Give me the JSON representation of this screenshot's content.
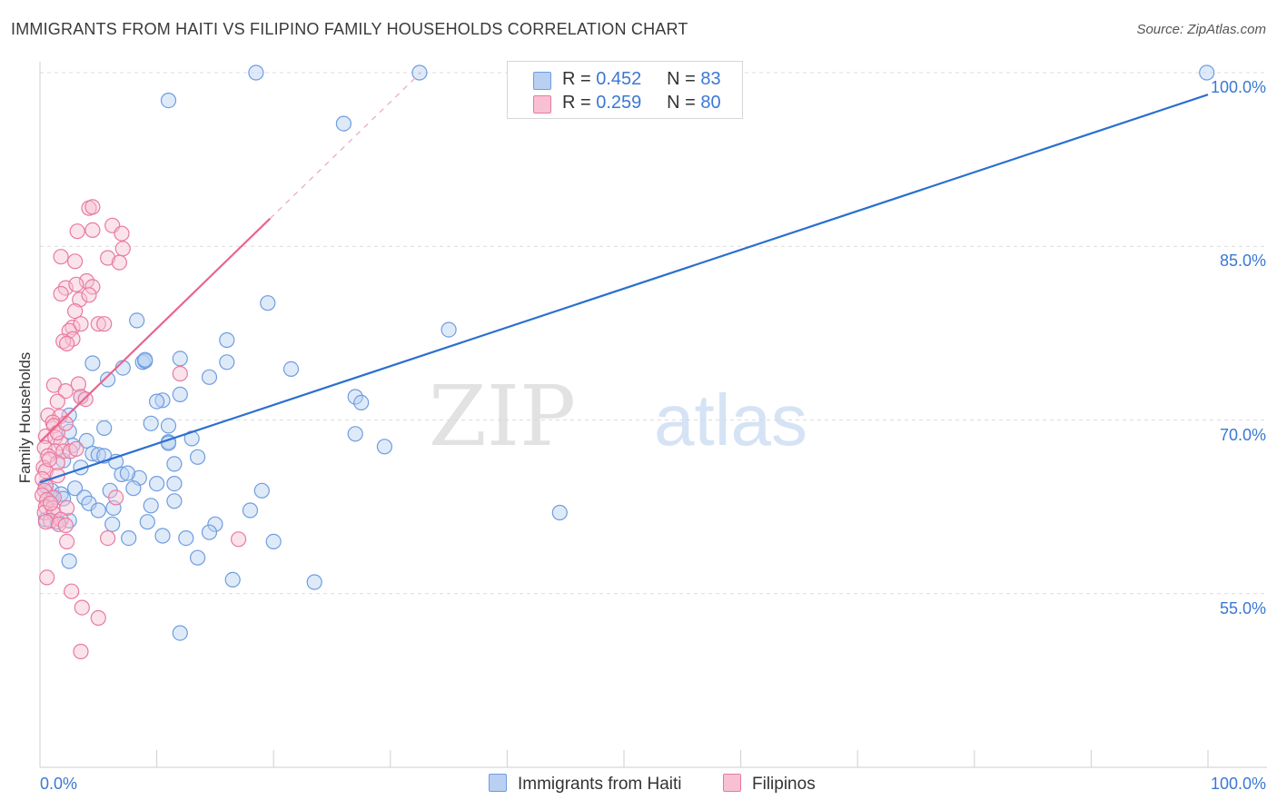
{
  "title": "IMMIGRANTS FROM HAITI VS FILIPINO FAMILY HOUSEHOLDS CORRELATION CHART",
  "source": "Source: ZipAtlas.com",
  "watermark": {
    "zip": "ZIP",
    "atlas": "atlas"
  },
  "legend": {
    "r_label": "R =",
    "n_label": "N =",
    "series": [
      {
        "name": "Immigrants from Haiti",
        "r": "0.452",
        "n": "83",
        "color": "#6d9de0",
        "fill": "#b9d0f2"
      },
      {
        "name": "Filipinos",
        "r": "0.259",
        "n": "80",
        "color": "#e87aa0",
        "fill": "#f7c1d3"
      }
    ]
  },
  "chart_data": {
    "type": "scatter",
    "title": "IMMIGRANTS FROM HAITI VS FILIPINO FAMILY HOUSEHOLDS CORRELATION CHART",
    "xlabel": "",
    "ylabel": "Family Households",
    "xlim": [
      0,
      100
    ],
    "ylim": [
      40,
      100
    ],
    "x_tick_labels": [
      "0.0%",
      "100.0%"
    ],
    "y_ticks": [
      {
        "value": 55,
        "label": "55.0%"
      },
      {
        "value": 70,
        "label": "70.0%"
      },
      {
        "value": 85,
        "label": "85.0%"
      },
      {
        "value": 100,
        "label": "100.0%"
      }
    ],
    "grid": "horizontal dashed",
    "series": [
      {
        "name": "Immigrants from Haiti",
        "color": "#6d9de0",
        "fill": "#b9d0f2",
        "trend": {
          "x": [
            0,
            100
          ],
          "y": [
            64.6,
            98.1
          ],
          "style": "solid",
          "color": "#2b6fcf"
        },
        "points": [
          [
            18.5,
            100
          ],
          [
            32.5,
            100
          ],
          [
            99.9,
            100
          ],
          [
            11,
            97.6
          ],
          [
            26,
            95.6
          ],
          [
            8.3,
            78.6
          ],
          [
            19.5,
            80.1
          ],
          [
            35,
            77.8
          ],
          [
            16,
            76.9
          ],
          [
            4.5,
            74.9
          ],
          [
            7.1,
            74.5
          ],
          [
            8.8,
            75
          ],
          [
            9,
            75.1
          ],
          [
            16,
            75
          ],
          [
            12,
            75.3
          ],
          [
            21.5,
            74.4
          ],
          [
            14.5,
            73.7
          ],
          [
            5.8,
            73.5
          ],
          [
            27,
            72
          ],
          [
            27.5,
            71.5
          ],
          [
            10.5,
            71.7
          ],
          [
            12,
            72.2
          ],
          [
            10,
            71.6
          ],
          [
            3.5,
            72
          ],
          [
            2.5,
            70.4
          ],
          [
            9.5,
            69.7
          ],
          [
            5.5,
            69.3
          ],
          [
            2.5,
            69
          ],
          [
            11,
            69.5
          ],
          [
            27,
            68.8
          ],
          [
            29.5,
            67.7
          ],
          [
            11,
            68.1
          ],
          [
            13,
            68.4
          ],
          [
            4,
            68.2
          ],
          [
            2.8,
            67.8
          ],
          [
            4.5,
            67.1
          ],
          [
            5,
            67
          ],
          [
            13.5,
            66.8
          ],
          [
            2,
            66.5
          ],
          [
            3.5,
            65.9
          ],
          [
            11.5,
            66.2
          ],
          [
            6.5,
            66.4
          ],
          [
            7,
            65.3
          ],
          [
            8.5,
            65
          ],
          [
            7.5,
            65.4
          ],
          [
            10,
            64.5
          ],
          [
            11.5,
            64.5
          ],
          [
            0.5,
            64.3
          ],
          [
            1,
            63.9
          ],
          [
            1.8,
            63.6
          ],
          [
            3,
            64.1
          ],
          [
            6,
            63.9
          ],
          [
            8,
            64.1
          ],
          [
            19,
            63.9
          ],
          [
            1,
            63.3
          ],
          [
            2,
            63.2
          ],
          [
            3.8,
            63.3
          ],
          [
            4.2,
            62.8
          ],
          [
            11.5,
            63
          ],
          [
            9.5,
            62.6
          ],
          [
            5,
            62.2
          ],
          [
            6.3,
            62.4
          ],
          [
            18,
            62.2
          ],
          [
            44.5,
            62
          ],
          [
            0.5,
            61.4
          ],
          [
            1.5,
            61.2
          ],
          [
            6.2,
            61
          ],
          [
            9.2,
            61.2
          ],
          [
            15,
            61
          ],
          [
            7.6,
            59.8
          ],
          [
            10.5,
            60
          ],
          [
            12.5,
            59.8
          ],
          [
            14.5,
            60.3
          ],
          [
            20,
            59.5
          ],
          [
            2.5,
            57.8
          ],
          [
            13.5,
            58.1
          ],
          [
            16.5,
            56.2
          ],
          [
            23.5,
            56
          ],
          [
            12,
            51.6
          ],
          [
            9,
            75.2
          ],
          [
            11,
            68
          ],
          [
            5.5,
            66.9
          ],
          [
            2.5,
            61.3
          ]
        ]
      },
      {
        "name": "Filipinos",
        "color": "#e87aa0",
        "fill": "#f7c1d3",
        "trend": {
          "x": [
            0,
            19.7
          ],
          "y": [
            68.1,
            87.4
          ],
          "dashed_to": [
            32.6,
            100
          ],
          "style": "solid",
          "color": "#e8648f"
        },
        "points": [
          [
            4.2,
            88.3
          ],
          [
            4.5,
            88.4
          ],
          [
            6.2,
            86.8
          ],
          [
            7,
            86.1
          ],
          [
            3.2,
            86.3
          ],
          [
            4.5,
            86.4
          ],
          [
            7.1,
            84.8
          ],
          [
            1.8,
            84.1
          ],
          [
            5.8,
            84
          ],
          [
            6.8,
            83.6
          ],
          [
            3,
            83.7
          ],
          [
            4,
            82
          ],
          [
            2.2,
            81.4
          ],
          [
            3.1,
            81.7
          ],
          [
            4.5,
            81.5
          ],
          [
            3.4,
            80.4
          ],
          [
            4.2,
            80.8
          ],
          [
            1.8,
            80.9
          ],
          [
            3,
            79.4
          ],
          [
            2.8,
            78
          ],
          [
            3.5,
            78.3
          ],
          [
            5,
            78.3
          ],
          [
            5.5,
            78.3
          ],
          [
            2.5,
            77.7
          ],
          [
            2.8,
            77
          ],
          [
            2,
            76.8
          ],
          [
            2.3,
            76.6
          ],
          [
            12,
            74
          ],
          [
            1.2,
            73
          ],
          [
            3.3,
            73.1
          ],
          [
            2.2,
            72.5
          ],
          [
            3.5,
            72
          ],
          [
            1.5,
            71.6
          ],
          [
            0.7,
            70.4
          ],
          [
            1.7,
            70.3
          ],
          [
            1.1,
            69.8
          ],
          [
            1.2,
            69.5
          ],
          [
            0.5,
            68.6
          ],
          [
            1.3,
            68.5
          ],
          [
            1.8,
            68
          ],
          [
            0.4,
            67.6
          ],
          [
            1.3,
            67.3
          ],
          [
            2,
            67.3
          ],
          [
            2.6,
            67.3
          ],
          [
            0.7,
            66.9
          ],
          [
            1.5,
            66.3
          ],
          [
            0.3,
            65.9
          ],
          [
            0.5,
            65.6
          ],
          [
            1.5,
            65.2
          ],
          [
            0.2,
            64.9
          ],
          [
            0.5,
            64.3
          ],
          [
            0.4,
            63.9
          ],
          [
            0.2,
            63.5
          ],
          [
            1.2,
            63.3
          ],
          [
            0.6,
            63.1
          ],
          [
            6.5,
            63.3
          ],
          [
            0.5,
            62.5
          ],
          [
            1.1,
            62.4
          ],
          [
            2.3,
            62.4
          ],
          [
            0.4,
            62
          ],
          [
            1.2,
            61.9
          ],
          [
            0.9,
            61.3
          ],
          [
            1.8,
            61.4
          ],
          [
            0.5,
            61.2
          ],
          [
            1.6,
            61
          ],
          [
            2.2,
            60.9
          ],
          [
            5.8,
            59.8
          ],
          [
            17,
            59.7
          ],
          [
            2.3,
            59.5
          ],
          [
            0.6,
            56.4
          ],
          [
            2.7,
            55.2
          ],
          [
            3.6,
            53.8
          ],
          [
            5,
            52.9
          ],
          [
            3.5,
            50
          ],
          [
            3.1,
            67.5
          ],
          [
            0.8,
            66.6
          ],
          [
            1.5,
            68.9
          ],
          [
            2.2,
            69.7
          ],
          [
            0.9,
            62.8
          ],
          [
            3.9,
            71.8
          ]
        ]
      }
    ]
  }
}
